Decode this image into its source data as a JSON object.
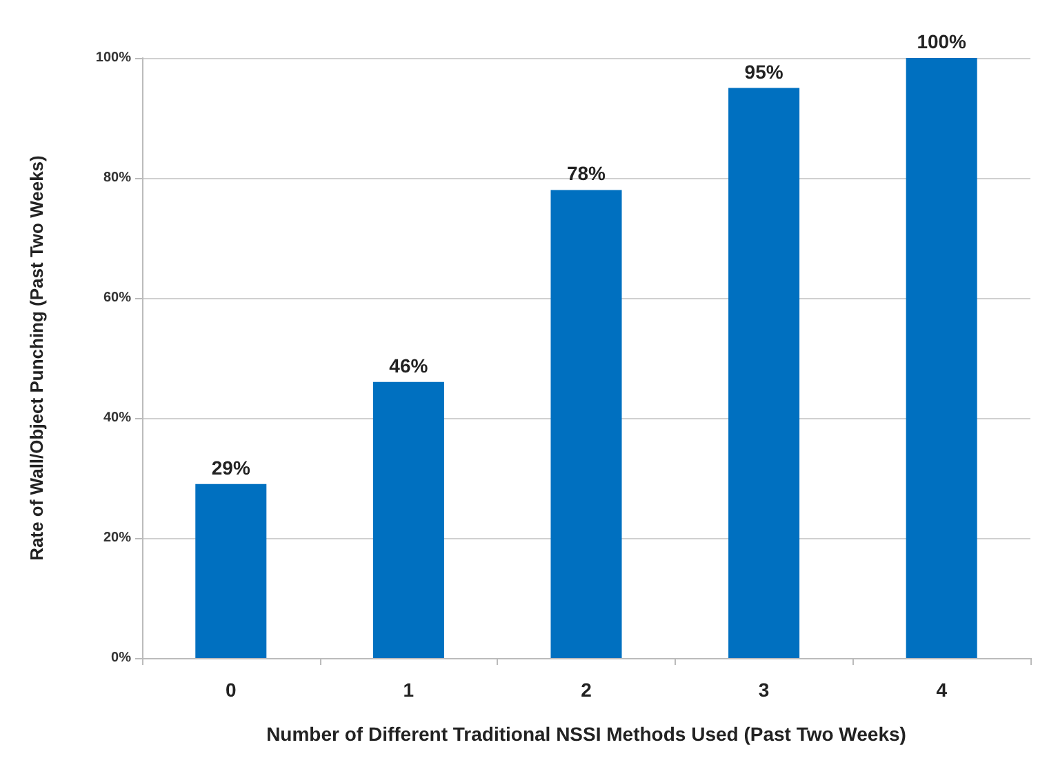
{
  "chart_data": {
    "type": "bar",
    "xlabel": "Number of Different Traditional NSSI Methods Used (Past Two Weeks)",
    "ylabel": "Rate of Wall/Object Punching (Past Two Weeks)",
    "categories": [
      "0",
      "1",
      "2",
      "3",
      "4"
    ],
    "values": [
      29,
      46,
      78,
      95,
      100
    ],
    "value_labels": [
      "29%",
      "46%",
      "78%",
      "95%",
      "100%"
    ],
    "color": "#0070c0",
    "ylim": [
      0,
      100
    ],
    "yticks": [
      {
        "value": 0,
        "label": "0%"
      },
      {
        "value": 20,
        "label": "20%"
      },
      {
        "value": 40,
        "label": "40%"
      },
      {
        "value": 60,
        "label": "60%"
      },
      {
        "value": 80,
        "label": "80%"
      },
      {
        "value": 100,
        "label": "100%"
      }
    ],
    "grid": "y"
  }
}
